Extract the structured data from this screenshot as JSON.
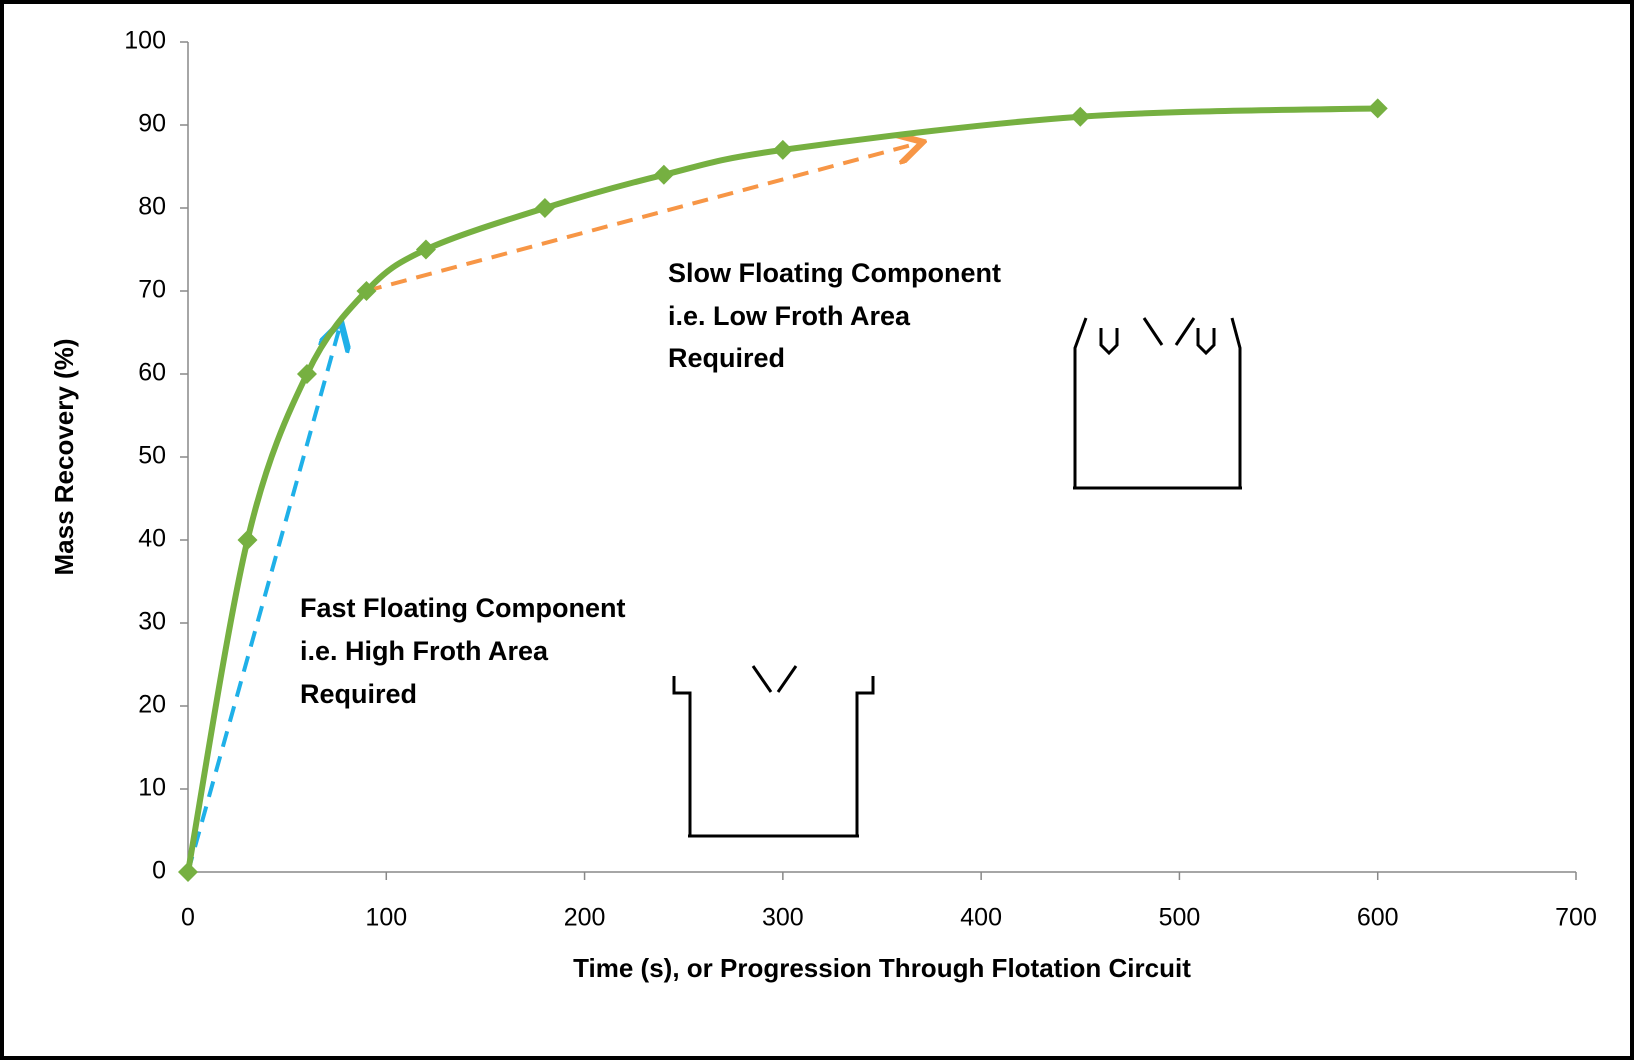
{
  "chart_data": {
    "type": "line",
    "x_label": "Time (s), or Progression Through Flotation Circuit",
    "y_label": "Mass Recovery (%)",
    "series": [
      {
        "color": "#76b041",
        "x": [
          0,
          30,
          60,
          90,
          120,
          180,
          240,
          300,
          450,
          600
        ],
        "values": [
          0,
          40,
          60,
          70,
          75,
          80,
          84,
          87,
          91,
          92
        ]
      }
    ],
    "xlim": [
      0,
      700
    ],
    "xticks": [
      0,
      100,
      200,
      300,
      400,
      500,
      600,
      700
    ],
    "ylim": [
      0,
      100
    ],
    "yticks": [
      0,
      10,
      20,
      30,
      40,
      50,
      60,
      70,
      80,
      90,
      100
    ],
    "annotations": [
      {
        "lines": [
          "Slow Floating Component",
          "i.e. Low Froth Area",
          "Required"
        ],
        "color": "#f79646"
      },
      {
        "lines": [
          "Fast Floating Component",
          "i.e. High Froth Area",
          "Required"
        ],
        "color": "#1fb0e8"
      }
    ]
  }
}
